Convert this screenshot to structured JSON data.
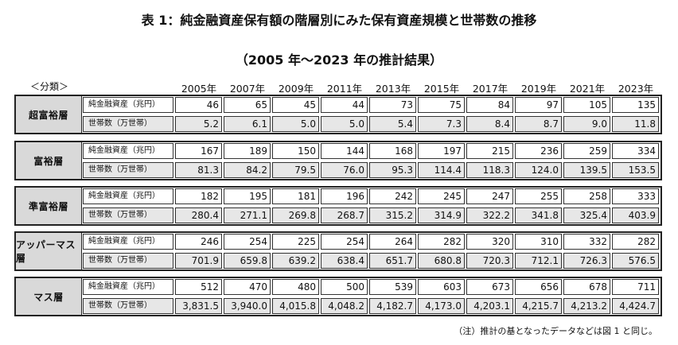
{
  "title": "表 1：純金融資産保有額の階層別にみた保有資産規模と世帯数の推移",
  "subtitle": "（2005 年～2023 年の推計結果）",
  "category_label": "＜分類＞",
  "years": [
    "2005年",
    "2007年",
    "2009年",
    "2011年",
    "2013年",
    "2015年",
    "2017年",
    "2019年",
    "2021年",
    "2023年"
  ],
  "row_labels": {
    "assets": "純金融資産（兆円）",
    "households": "世帯数（万世帯）"
  },
  "groups": [
    {
      "name": "超富裕層",
      "assets": [
        "46",
        "65",
        "45",
        "44",
        "73",
        "75",
        "84",
        "97",
        "105",
        "135"
      ],
      "households": [
        "5.2",
        "6.1",
        "5.0",
        "5.0",
        "5.4",
        "7.3",
        "8.4",
        "8.7",
        "9.0",
        "11.8"
      ]
    },
    {
      "name": "富裕層",
      "assets": [
        "167",
        "189",
        "150",
        "144",
        "168",
        "197",
        "215",
        "236",
        "259",
        "334"
      ],
      "households": [
        "81.3",
        "84.2",
        "79.5",
        "76.0",
        "95.3",
        "114.4",
        "118.3",
        "124.0",
        "139.5",
        "153.5"
      ]
    },
    {
      "name": "準富裕層",
      "assets": [
        "182",
        "195",
        "181",
        "196",
        "242",
        "245",
        "247",
        "255",
        "258",
        "333"
      ],
      "households": [
        "280.4",
        "271.1",
        "269.8",
        "268.7",
        "315.2",
        "314.9",
        "322.2",
        "341.8",
        "325.4",
        "403.9"
      ]
    },
    {
      "name": "アッパーマス層",
      "assets": [
        "246",
        "254",
        "225",
        "254",
        "264",
        "282",
        "320",
        "310",
        "332",
        "282"
      ],
      "households": [
        "701.9",
        "659.8",
        "639.2",
        "638.4",
        "651.7",
        "680.8",
        "720.3",
        "712.1",
        "726.3",
        "576.5"
      ]
    },
    {
      "name": "マス層",
      "assets": [
        "512",
        "470",
        "480",
        "500",
        "539",
        "603",
        "673",
        "656",
        "678",
        "711"
      ],
      "households": [
        "3,831.5",
        "3,940.0",
        "4,015.8",
        "4,048.2",
        "4,182.7",
        "4,173.0",
        "4,203.1",
        "4,215.7",
        "4,213.2",
        "4,424.7"
      ]
    }
  ],
  "note": "（注）推計の基となったデータなどは図 1 と同じ。"
}
